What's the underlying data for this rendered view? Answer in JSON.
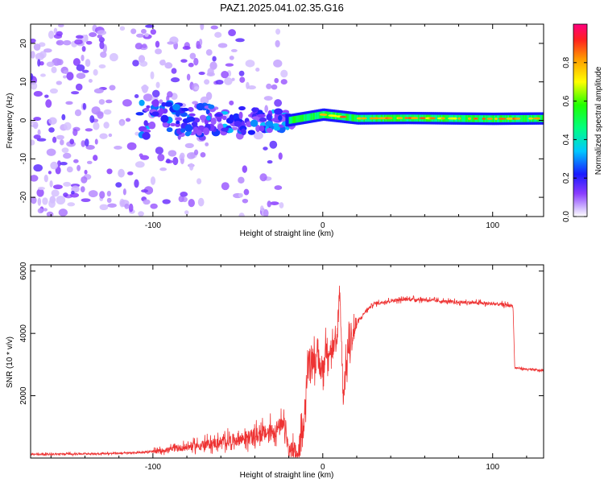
{
  "title": "PAZ1.2025.041.02.35.G16",
  "chart_data": [
    {
      "type": "heatmap",
      "xlabel": "Height of straight line (km)",
      "ylabel": "Frequency (Hz)",
      "xlim": [
        -172,
        130
      ],
      "ylim": [
        -25,
        25
      ],
      "x_ticks": [
        -100,
        0,
        100
      ],
      "y_ticks": [
        -20,
        -10,
        0,
        10,
        20
      ],
      "colorbar": {
        "label": "Normalized spectral amplitude",
        "range": [
          0,
          1
        ],
        "ticks": [
          0.0,
          0.2,
          0.4,
          0.6,
          0.8
        ]
      },
      "ridge": [
        [
          -108,
          0
        ],
        [
          -20,
          0
        ],
        [
          0,
          1.5
        ],
        [
          20,
          0.5
        ],
        [
          50,
          0.6
        ],
        [
          100,
          0.4
        ],
        [
          130,
          0.5
        ]
      ]
    },
    {
      "type": "line",
      "xlabel": "Height of straight line (km)",
      "ylabel": "SNR (10 * v/v)",
      "xlim": [
        -172,
        130
      ],
      "ylim": [
        0,
        6200
      ],
      "x_ticks": [
        -100,
        0,
        100
      ],
      "y_ticks": [
        2000,
        4000,
        6000
      ],
      "series": [
        {
          "color": "#ee3333",
          "x": [
            -172,
            -150,
            -120,
            -100,
            -80,
            -60,
            -40,
            -30,
            -25,
            -22,
            -20,
            -15,
            -12,
            -10,
            -8,
            -5,
            -3,
            0,
            2,
            5,
            8,
            10,
            12,
            15,
            20,
            25,
            30,
            40,
            50,
            60,
            70,
            80,
            90,
            100,
            105,
            110,
            112,
            113,
            120,
            130
          ],
          "y": [
            120,
            130,
            150,
            200,
            350,
            500,
            700,
            850,
            1000,
            1000,
            150,
            100,
            700,
            2000,
            3300,
            3200,
            3000,
            2800,
            3500,
            3500,
            3500,
            5500,
            2000,
            3500,
            4300,
            4700,
            4950,
            5050,
            5100,
            5080,
            5030,
            5000,
            4980,
            4950,
            4930,
            4900,
            4880,
            2900,
            2850,
            2800
          ]
        }
      ]
    }
  ]
}
